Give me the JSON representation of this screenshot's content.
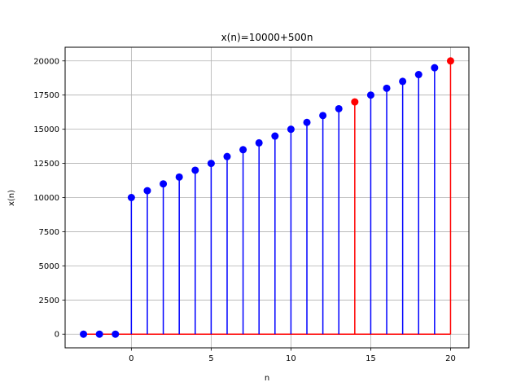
{
  "chart_data": {
    "type": "stem",
    "title": "x(n)=10000+500n",
    "xlabel": "n",
    "ylabel": "x(n)",
    "xlim": [
      -4.15,
      21.15
    ],
    "ylim": [
      -1000,
      21000
    ],
    "xticks": [
      0,
      5,
      10,
      15,
      20
    ],
    "xtick_labels": [
      "0",
      "5",
      "10",
      "15",
      "20"
    ],
    "yticks": [
      0,
      2500,
      5000,
      7500,
      10000,
      12500,
      15000,
      17500,
      20000
    ],
    "ytick_labels": [
      "0",
      "2500",
      "5000",
      "7500",
      "10000",
      "12500",
      "15000",
      "17500",
      "20000"
    ],
    "grid": true,
    "baseline": 0,
    "series": [
      {
        "color": "#0000ff",
        "x": [
          -3,
          -2,
          -1,
          0,
          1,
          2,
          3,
          4,
          5,
          6,
          7,
          8,
          9,
          10,
          11,
          12,
          13,
          15,
          16,
          17,
          18,
          19
        ],
        "y": [
          0,
          0,
          0,
          10000,
          10500,
          11000,
          11500,
          12000,
          12500,
          13000,
          13500,
          14000,
          14500,
          15000,
          15500,
          16000,
          16500,
          17500,
          18000,
          18500,
          19000,
          19500
        ]
      },
      {
        "color": "#ff0000",
        "x": [
          14,
          20
        ],
        "y": [
          17000,
          20000
        ]
      }
    ],
    "baseline_color": "#ff0000"
  }
}
